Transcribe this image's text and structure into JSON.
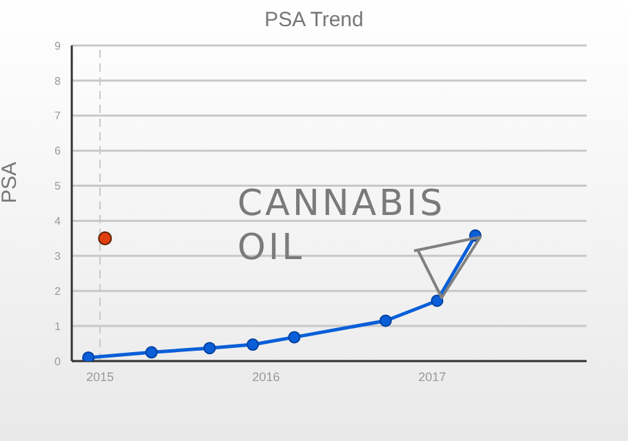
{
  "chart_data": {
    "type": "line",
    "title": "PSA Trend",
    "ylabel": "PSA",
    "xlim": [
      2014.83,
      2017.93
    ],
    "xticks": [
      2015,
      2016,
      2017
    ],
    "ylim": [
      0,
      9
    ],
    "yticks": [
      0,
      1,
      2,
      3,
      4,
      5,
      6,
      7,
      8,
      9
    ],
    "grid": "y",
    "legend": false,
    "marker": "circle",
    "line_style": "solid",
    "series": [
      {
        "color": "#0a5fd8",
        "x": [
          2014.93,
          2015.31,
          2015.66,
          2015.92,
          2016.17,
          2016.72,
          2017.03,
          2017.26
        ],
        "values": [
          0.1,
          0.25,
          0.37,
          0.47,
          0.68,
          1.15,
          1.72,
          3.58
        ]
      },
      {
        "type": "scatter",
        "color": "#e04010",
        "x": [
          2015.03
        ],
        "values": [
          3.5
        ]
      }
    ],
    "ref_lines": [
      {
        "axis": "x",
        "value": 2015,
        "color": "#c8c8c8",
        "line_style": "dashed"
      }
    ],
    "annotations": [
      "CANNABIS OIL"
    ]
  }
}
